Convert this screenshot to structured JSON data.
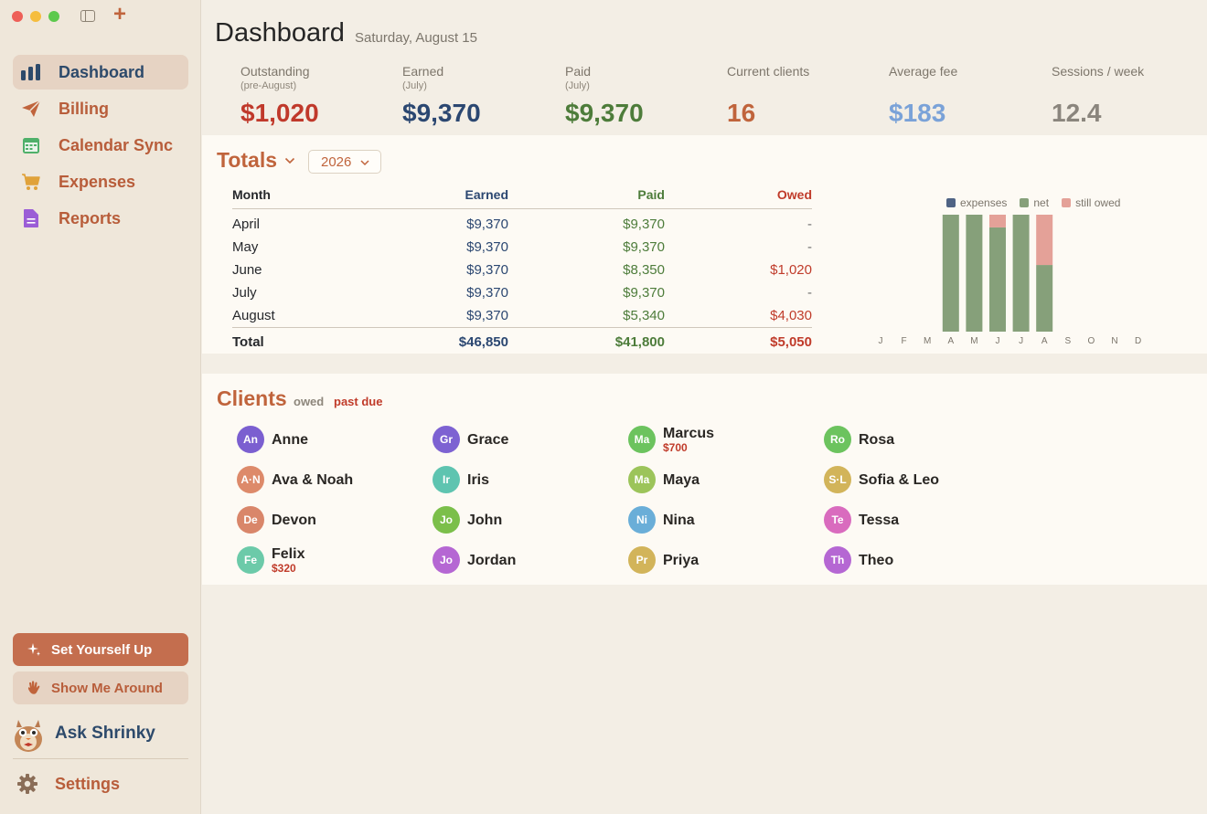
{
  "sidebar": {
    "nav": [
      {
        "label": "Dashboard",
        "icon": "chart-bars-icon",
        "active": true
      },
      {
        "label": "Billing",
        "icon": "paper-plane-icon",
        "active": false
      },
      {
        "label": "Calendar Sync",
        "icon": "calendar-icon",
        "active": false
      },
      {
        "label": "Expenses",
        "icon": "shopping-cart-icon",
        "active": false
      },
      {
        "label": "Reports",
        "icon": "document-icon",
        "active": false
      }
    ],
    "setup_label": "Set Yourself Up",
    "tour_label": "Show Me Around",
    "ask_label": "Ask Shrinky",
    "settings_label": "Settings"
  },
  "header": {
    "title": "Dashboard",
    "date": "Saturday, August 15"
  },
  "stats": [
    {
      "label": "Outstanding",
      "sub": "(pre-August)",
      "value": "$1,020",
      "color": "#c0392b"
    },
    {
      "label": "Earned",
      "sub": "(July)",
      "value": "$9,370",
      "color": "#2b4771"
    },
    {
      "label": "Paid",
      "sub": "(July)",
      "value": "$9,370",
      "color": "#4d7c3a"
    },
    {
      "label": "Current clients",
      "sub": "",
      "value": "16",
      "color": "#c0643c"
    },
    {
      "label": "Average fee",
      "sub": "",
      "value": "$183",
      "color": "#7aa2d8"
    },
    {
      "label": "Sessions / week",
      "sub": "",
      "value": "12.4",
      "color": "#8a857d"
    }
  ],
  "totals": {
    "title": "Totals",
    "year": "2026",
    "columns": [
      "Month",
      "Earned",
      "Paid",
      "Owed"
    ],
    "rows": [
      {
        "month": "April",
        "earned": "$9,370",
        "paid": "$9,370",
        "owed": "-"
      },
      {
        "month": "May",
        "earned": "$9,370",
        "paid": "$9,370",
        "owed": "-"
      },
      {
        "month": "June",
        "earned": "$9,370",
        "paid": "$8,350",
        "owed": "$1,020"
      },
      {
        "month": "July",
        "earned": "$9,370",
        "paid": "$9,370",
        "owed": "-"
      },
      {
        "month": "August",
        "earned": "$9,370",
        "paid": "$5,340",
        "owed": "$4,030"
      }
    ],
    "total": {
      "label": "Total",
      "earned": "$46,850",
      "paid": "$41,800",
      "owed": "$5,050"
    }
  },
  "chart_data": {
    "type": "bar",
    "stacked": true,
    "categories": [
      "J",
      "F",
      "M",
      "A",
      "M",
      "J",
      "J",
      "A",
      "S",
      "O",
      "N",
      "D"
    ],
    "series": [
      {
        "name": "expenses",
        "color": "#4f6384",
        "values": [
          0,
          0,
          0,
          0,
          0,
          0,
          0,
          0,
          0,
          0,
          0,
          0
        ]
      },
      {
        "name": "net",
        "color": "#86a07a",
        "values": [
          0,
          0,
          0,
          9370,
          9370,
          8350,
          9370,
          5340,
          0,
          0,
          0,
          0
        ]
      },
      {
        "name": "still owed",
        "color": "#e4a198",
        "values": [
          0,
          0,
          0,
          0,
          0,
          1020,
          0,
          4030,
          0,
          0,
          0,
          0
        ]
      }
    ],
    "ylim": [
      0,
      9370
    ],
    "legend": "top"
  },
  "clients": {
    "title": "Clients",
    "legend_owed": "owed",
    "legend_past_due": "past due",
    "list": [
      {
        "initials": "An",
        "name": "Anne",
        "color": "#7b5fd0",
        "amount": ""
      },
      {
        "initials": "A·N",
        "name": "Ava & Noah",
        "color": "#dd8a6a",
        "amount": ""
      },
      {
        "initials": "De",
        "name": "Devon",
        "color": "#d9866a",
        "amount": ""
      },
      {
        "initials": "Fe",
        "name": "Felix",
        "color": "#6ccaa9",
        "amount": "$320"
      },
      {
        "initials": "Gr",
        "name": "Grace",
        "color": "#7d62d2",
        "amount": ""
      },
      {
        "initials": "Ir",
        "name": "Iris",
        "color": "#5ec4b0",
        "amount": ""
      },
      {
        "initials": "Jo",
        "name": "John",
        "color": "#7bbf4a",
        "amount": ""
      },
      {
        "initials": "Jo",
        "name": "Jordan",
        "color": "#b567d3",
        "amount": ""
      },
      {
        "initials": "Ma",
        "name": "Marcus",
        "color": "#6cc35e",
        "amount": "$700"
      },
      {
        "initials": "Ma",
        "name": "Maya",
        "color": "#9cc45a",
        "amount": ""
      },
      {
        "initials": "Ni",
        "name": "Nina",
        "color": "#6aaed8",
        "amount": ""
      },
      {
        "initials": "Pr",
        "name": "Priya",
        "color": "#d2b45a",
        "amount": ""
      },
      {
        "initials": "Ro",
        "name": "Rosa",
        "color": "#6cc35e",
        "amount": ""
      },
      {
        "initials": "S·L",
        "name": "Sofia & Leo",
        "color": "#d2b45a",
        "amount": ""
      },
      {
        "initials": "Te",
        "name": "Tessa",
        "color": "#d96bbe",
        "amount": ""
      },
      {
        "initials": "Th",
        "name": "Theo",
        "color": "#b567d3",
        "amount": ""
      }
    ]
  }
}
